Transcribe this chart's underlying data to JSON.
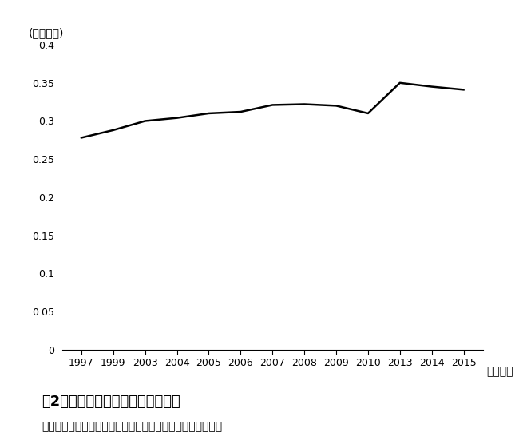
{
  "years": [
    1997,
    1999,
    2003,
    2004,
    2005,
    2006,
    2007,
    2008,
    2009,
    2010,
    2013,
    2014,
    2015
  ],
  "gini": [
    0.278,
    0.288,
    0.3,
    0.304,
    0.31,
    0.312,
    0.321,
    0.322,
    0.32,
    0.31,
    0.35,
    0.345,
    0.341
  ],
  "x_tick_labels": [
    "1997",
    "1999",
    "2003",
    "2004",
    "2005",
    "2006",
    "2007",
    "2008",
    "2009",
    "2010",
    "2013",
    "2014",
    "2015"
  ],
  "y_label": "(ジニ係数)",
  "x_unit_label": "（年度）",
  "ylim": [
    0,
    0.4
  ],
  "yticks": [
    0,
    0.05,
    0.1,
    0.15,
    0.2,
    0.25,
    0.3,
    0.35,
    0.4
  ],
  "line_color": "#000000",
  "line_width": 1.8,
  "title": "図2　韓国におけるジニ係数の推移",
  "caption": "資料：韓国統計庁「所得分配指標（市場所得）」より作成。",
  "background_color": "#ffffff",
  "title_fontsize": 13,
  "caption_fontsize": 10,
  "ylabel_fontsize": 10,
  "tick_fontsize": 9,
  "xlabel_unit_fontsize": 10
}
